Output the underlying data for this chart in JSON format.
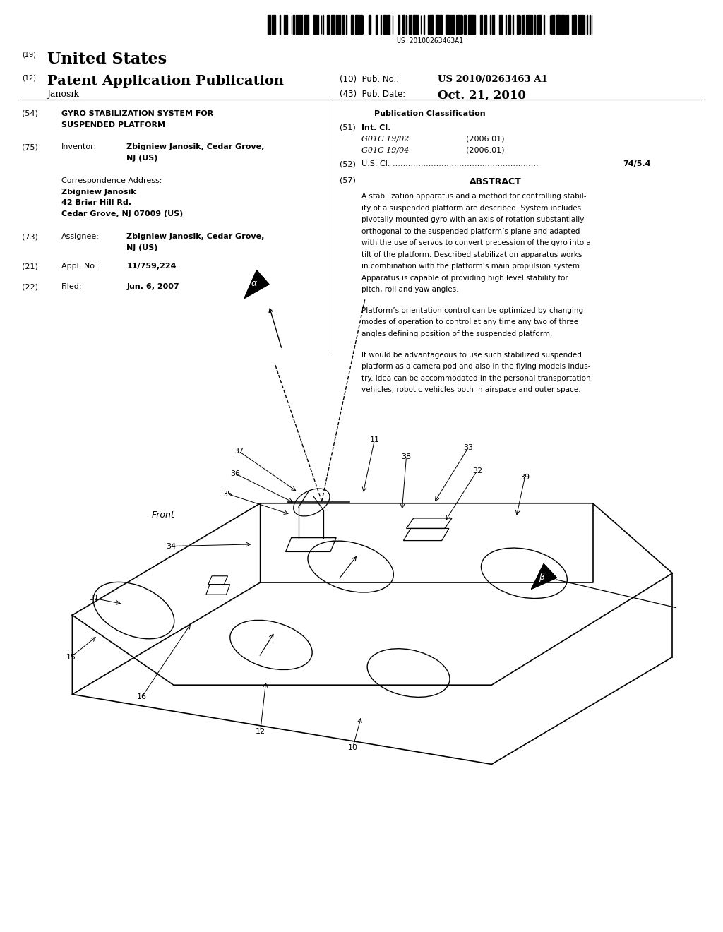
{
  "bg_color": "#ffffff",
  "text_color": "#000000",
  "barcode_text": "US 20100263463A1",
  "line19": "(19)",
  "united_states": "United States",
  "line12": "(12)",
  "patent_app_pub": "Patent Application Publication",
  "pub_no_label": "(10)  Pub. No.:",
  "pub_no_value": "US 2010/0263463 A1",
  "janosik_name": "Janosik",
  "pub_date_label": "(43)  Pub. Date:",
  "pub_date_value": "Oct. 21, 2010",
  "field54": "(54)",
  "title_line1": "GYRO STABILIZATION SYSTEM FOR",
  "title_line2": "SUSPENDED PLATFORM",
  "pub_class_header": "Publication Classification",
  "field51": "(51)",
  "intcl_label": "Int. Cl.",
  "intcl1_code": "G01C 19/02",
  "intcl1_year": "(2006.01)",
  "intcl2_code": "G01C 19/04",
  "intcl2_year": "(2006.01)",
  "field52": "(52)",
  "uscl_label": "U.S. Cl. .........................................................",
  "uscl_value": "74/5.4",
  "field57": "(57)",
  "abstract_header": "ABSTRACT",
  "abstract_para1": "A stabilization apparatus and a method for controlling stabil-\nity of a suspended platform are described. System includes\npivotally mounted gyro with an axis of rotation substantially\northogonal to the suspended platform’s plane and adapted\nwith the use of servos to convert precession of the gyro into a\ntilt of the platform. Described stabilization apparatus works\nin combination with the platform’s main propulsion system.\nApparatus is capable of providing high level stability for\npitch, roll and yaw angles.",
  "abstract_para2": "Platform’s orientation control can be optimized by changing\nmodes of operation to control at any time any two of three\nangles defining position of the suspended platform.",
  "abstract_para3": "It would be advantageous to use such stabilized suspended\nplatform as a camera pod and also in the flying models indus-\ntry. Idea can be accommodated in the personal transportation\nvehicles, robotic vehicles both in airspace and outer space.",
  "field75": "(75)",
  "inventor_label": "Inventor:",
  "inventor_value_1": "Zbigniew Janosik, Cedar Grove,",
  "inventor_value_2": "NJ (US)",
  "corr_addr": "Correspondence Address:",
  "corr_name": "Zbigniew Janosik",
  "corr_street": "42 Briar Hill Rd.",
  "corr_city": "Cedar Grove, NJ 07009 (US)",
  "field73": "(73)",
  "assignee_label": "Assignee:",
  "assignee_value_1": "Zbigniew Janosik, Cedar Grove,",
  "assignee_value_2": "NJ (US)",
  "field21": "(21)",
  "appl_label": "Appl. No.:",
  "appl_value": "11/759,224",
  "field22": "(22)",
  "filed_label": "Filed:",
  "filed_value": "Jun. 6, 2007"
}
